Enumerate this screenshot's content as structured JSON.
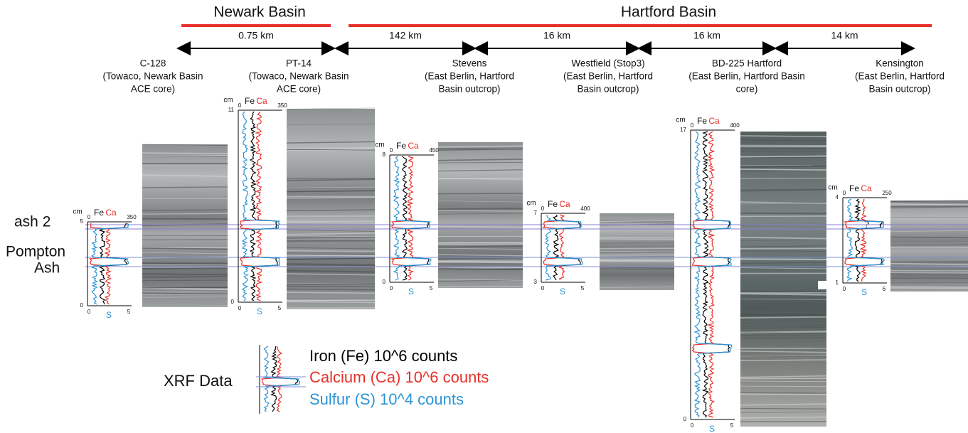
{
  "header": {
    "newark": "Newark Basin",
    "hartford": "Hartford Basin"
  },
  "distances": [
    "0.75 km",
    "142 km",
    "16 km",
    "16 km",
    "14 km"
  ],
  "sites": [
    {
      "lines": [
        "C-128",
        "(Towaco, Newark Basin",
        "ACE core)"
      ]
    },
    {
      "lines": [
        "PT-14",
        "(Towaco, Newark Basin",
        "ACE core)"
      ]
    },
    {
      "lines": [
        "Stevens",
        "(East Berlin, Hartford",
        "Basin outcrop)"
      ]
    },
    {
      "lines": [
        "Westfield (Stop3)",
        "(East Berlin, Hartford",
        "Basin outcrop)"
      ]
    },
    {
      "lines": [
        "BD-225 Hartford",
        "(East Berlin, Hartford Basin",
        "core)"
      ]
    },
    {
      "lines": [
        "Kensington",
        "(East Berlin, Hartford",
        "Basin outcrop)"
      ]
    }
  ],
  "markers": {
    "ash2": "ash 2",
    "pompton": "Pompton",
    "ash": "Ash"
  },
  "plots": [
    {
      "unit": "cm",
      "top_ticks": [
        "0",
        "350"
      ],
      "fe": "Fe",
      "ca": "Ca",
      "left_ticks": [
        "5",
        "0"
      ],
      "bottom_ticks": [
        "0",
        "5"
      ],
      "s": "S"
    },
    {
      "unit": "cm",
      "top_ticks": [
        "0",
        "350"
      ],
      "fe": "Fe",
      "ca": "Ca",
      "left_ticks": [
        "11",
        "0"
      ],
      "bottom_ticks": [
        "0",
        "5"
      ],
      "s": "S"
    },
    {
      "unit": "cm",
      "top_ticks": [
        "0",
        "450"
      ],
      "fe": "Fe",
      "ca": "Ca",
      "left_ticks": [
        "8",
        "0"
      ],
      "bottom_ticks": [
        "0",
        "5"
      ],
      "s": "S"
    },
    {
      "unit": "cm",
      "top_ticks": [
        "0",
        "400"
      ],
      "fe": "Fe",
      "ca": "Ca",
      "left_ticks": [
        "7",
        "3"
      ],
      "bottom_ticks": [
        "0",
        "5"
      ],
      "s": "S"
    },
    {
      "unit": "cm",
      "top_ticks": [
        "0",
        "400"
      ],
      "fe": "Fe",
      "ca": "Ca",
      "left_ticks": [
        "17",
        "0"
      ],
      "bottom_ticks": [
        "0",
        "5"
      ],
      "s": "S"
    },
    {
      "unit": "cm",
      "top_ticks": [
        "0",
        "250"
      ],
      "fe": "Fe",
      "ca": "Ca",
      "left_ticks": [
        "4",
        "1"
      ],
      "bottom_ticks": [
        "0",
        "6"
      ],
      "s": "S"
    }
  ],
  "question": "?",
  "legend": {
    "title": "XRF Data",
    "items": [
      "Iron (Fe) 10^6 counts",
      "Calcium (Ca) 10^6 counts",
      "Sulfur (S) 10^4 counts"
    ]
  }
}
